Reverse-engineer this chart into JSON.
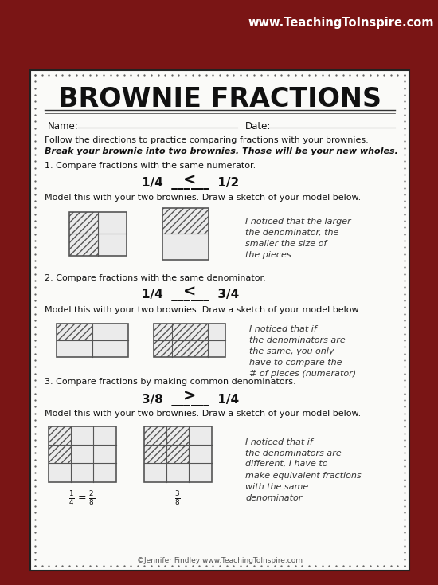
{
  "bg_color": "#7A1515",
  "paper_color": "#FAFAF8",
  "website_text": "www.TeachingToInspire.com",
  "website_color": "#FFFFFF",
  "title": "BROWNIE FRACTIONS",
  "step1_header": "1. Compare fractions with the same numerator.",
  "step1_model": "Model this with your two brownies. Draw a sketch of your model below.",
  "step1_note": "I noticed that the larger\nthe denominator, the\nsmaller the size of\nthe pieces.",
  "step2_header": "2. Compare fractions with the same denominator.",
  "step2_model": "Model this with your two brownies. Draw a sketch of your model below.",
  "step2_note": "I noticed that if\nthe denominators are\nthe same, you only\nhave to compare the\n# of pieces (numerator)",
  "step3_header": "3. Compare fractions by making common denominators.",
  "step3_model": "Model this with your two brownies. Draw a sketch of your model below.",
  "step3_note": "I noticed that if\nthe denominators are\ndifferent, I have to\nmake equivalent fractions\nwith the same\ndenominator",
  "footer": "©Jennifer Findley www.TeachingToInspire.com",
  "instruction1": "Follow the directions to practice comparing fractions with your brownies.",
  "instruction2": "Break your brownie into two brownies. Those will be your new wholes."
}
